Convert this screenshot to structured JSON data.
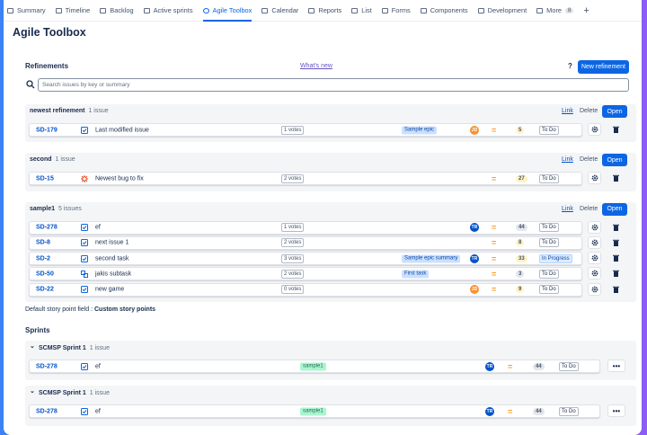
{
  "nav": {
    "tabs": [
      "Summary",
      "Timeline",
      "Backlog",
      "Active sprints",
      "Agile Toolbox",
      "Calendar",
      "Reports",
      "List",
      "Forms",
      "Components",
      "Development",
      "More"
    ],
    "active": 4,
    "more_badge": 8
  },
  "page": {
    "title": "Agile Toolbox"
  },
  "refinements": {
    "heading": "Refinements",
    "whats_new": "What's new",
    "help": "?",
    "new_button": "New refinement",
    "search_placeholder": "Search issues by key or summary",
    "actions": [
      "Link",
      "Delete",
      "Open"
    ],
    "groups": [
      {
        "name": "newest refinement",
        "count": "1 issue",
        "issues": [
          {
            "key": "SD-179",
            "type": "story",
            "summary": "Last modified issue",
            "votes": "1 votes",
            "epic": "Sample epic",
            "avatar": "JD",
            "avatar_color": "#f79232",
            "points": 5,
            "points_color": "#fff3c4",
            "status": "To Do"
          }
        ]
      },
      {
        "name": "second",
        "count": "1 issue",
        "issues": [
          {
            "key": "SD-15",
            "type": "bug",
            "summary": "Newest bug to fix",
            "votes": "2 votes",
            "points": 27,
            "points_color": "#fff3c4",
            "status": "To Do"
          }
        ]
      },
      {
        "name": "sample1",
        "count": "5 issues",
        "issues": [
          {
            "key": "SD-278",
            "type": "story",
            "summary": "ef",
            "votes": "1 votes",
            "avatar": "TR",
            "avatar_color": "#0052cc",
            "points": 44,
            "points_color": "#e4e6ea",
            "status": "To Do"
          },
          {
            "key": "SD-8",
            "type": "story",
            "summary": "next issue 1",
            "votes": "2 votes",
            "points": 8,
            "points_color": "#fff3c4",
            "status": "To Do"
          },
          {
            "key": "SD-2",
            "type": "story",
            "summary": "second task",
            "votes": "3 votes",
            "epic": "Sample epic summary",
            "avatar": "TR",
            "avatar_color": "#0052cc",
            "points": 33,
            "points_color": "#fff3c4",
            "status": "In Progress",
            "status_color": "#deebff"
          },
          {
            "key": "SD-50",
            "type": "subtask",
            "summary": "jakis subtask",
            "votes": "2 votes",
            "epic": "First task",
            "points": 3,
            "points_color": "#e4e6ea",
            "status": "To Do"
          },
          {
            "key": "SD-22",
            "type": "story",
            "summary": "new game",
            "votes": "0 votes",
            "avatar": "JD",
            "avatar_color": "#f79232",
            "points": 9,
            "points_color": "#fff3c4",
            "status": "To Do"
          }
        ]
      }
    ]
  },
  "default_field": {
    "label": "Default story point field :",
    "value": "Custom story points"
  },
  "sprints": {
    "heading": "Sprints",
    "groups": [
      {
        "name": "SCMSP Sprint 1",
        "count": "1 issue",
        "issues": [
          {
            "key": "SD-278",
            "type": "story",
            "summary": "ef",
            "label": "sample1",
            "avatar": "TR",
            "avatar_color": "#0052cc",
            "points": 44,
            "points_color": "#e4e6ea",
            "status": "To Do"
          }
        ]
      },
      {
        "name": "SCMSP Sprint 1",
        "count": "1 issue",
        "issues": [
          {
            "key": "SD-278",
            "type": "story",
            "summary": "ef",
            "label": "sample1",
            "avatar": "TR",
            "avatar_color": "#0052cc",
            "points": 44,
            "points_color": "#e4e6ea",
            "status": "To Do"
          }
        ]
      }
    ]
  }
}
